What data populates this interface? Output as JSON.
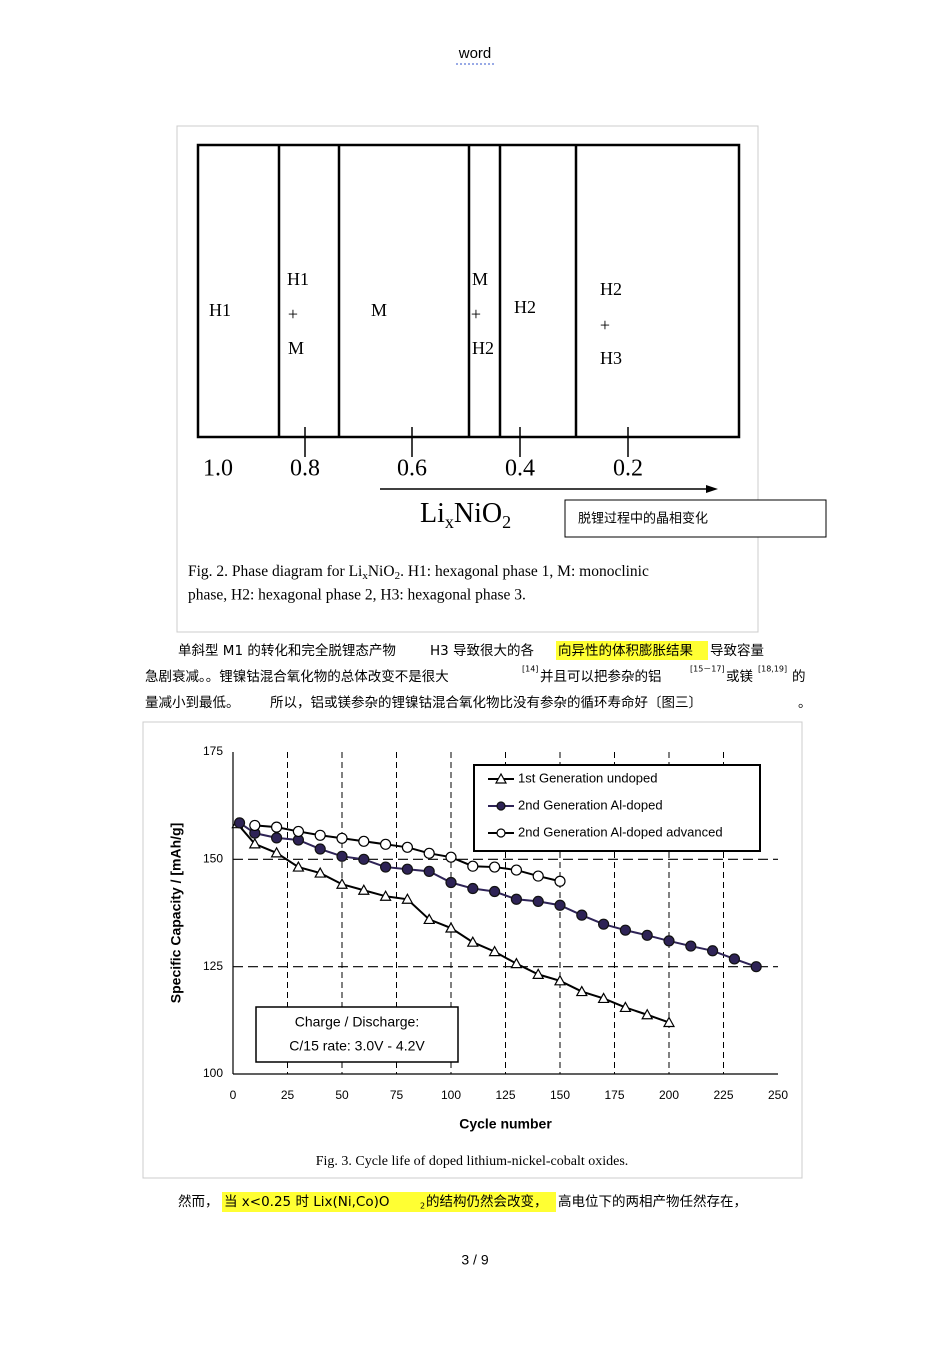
{
  "header": {
    "title": "word"
  },
  "figure_2": {
    "phases": [
      [
        "H1"
      ],
      [
        "H1",
        "+",
        "M"
      ],
      [
        "M"
      ],
      [
        "M",
        "+",
        "H2"
      ],
      [
        "H2"
      ],
      [
        "H2",
        "+",
        "H3"
      ]
    ],
    "ticks": [
      "1.0",
      "0.8",
      "0.6",
      "0.4",
      "0.2"
    ],
    "axis_label": [
      "Li",
      "x",
      "NiO",
      "2"
    ],
    "annotation": "脱锂过程中的晶相变化",
    "caption": [
      [
        "Fig. 2. Phase diagram for Li",
        "x",
        "NiO",
        "2",
        ". H1: hexagonal phase 1, M: monoclinic"
      ],
      [
        "phase, H2: hexagonal phase 2, H3: hexagonal phase 3."
      ]
    ]
  },
  "paragraph_1": [
    [
      "单斜型  M1 的转化和完全脱锂态产物",
      "H3 导致很大的各",
      "向异性的体积膨胀结果",
      "导致容量"
    ],
    [
      "急剧衰减。。锂镍钴混合氧化物的总体改变不是很大",
      "[14]",
      "并且可以把参杂的铝",
      "[15－17]",
      "或镁",
      "[18,19]",
      "的"
    ],
    [
      "量减小到最低。",
      "所以，铝或镁参杂的锂镍钴混合氧化物比没有参杂的循环寿命好〔图三〕",
      "。"
    ]
  ],
  "chart_data": {
    "type": "line",
    "x_label": "Cycle number",
    "y_label": "Specific Capacity / [mAh/g]",
    "xlim": [
      0,
      250
    ],
    "xticks": [
      0,
      25,
      50,
      75,
      100,
      125,
      150,
      175,
      200,
      225,
      250
    ],
    "ylim": [
      100,
      175
    ],
    "yticks": [
      100,
      125,
      150,
      175
    ],
    "grid": true,
    "legend": "upper right",
    "annotation": [
      "Charge / Discharge:",
      "C/15 rate: 3.0V - 4.2V"
    ],
    "series": [
      {
        "name": "1st Generation undoped",
        "color": "#000000",
        "marker": "triangle-open",
        "x": [
          2,
          10,
          20,
          30,
          40,
          50,
          60,
          70,
          80,
          90,
          100,
          110,
          120,
          130,
          140,
          150,
          160,
          170,
          180,
          190,
          200
        ],
        "values": [
          158.3,
          153.6,
          151.5,
          148.2,
          146.8,
          144.2,
          142.8,
          141.4,
          140.7,
          136,
          134,
          130.7,
          128.5,
          125.7,
          123.2,
          121.7,
          119.2,
          117.6,
          115.5,
          113.8,
          112
        ]
      },
      {
        "name": "2nd Generation Al-doped",
        "color": "#2e2356",
        "marker": "circle-filled",
        "x": [
          3,
          10,
          20,
          30,
          40,
          50,
          60,
          70,
          80,
          90,
          100,
          110,
          120,
          130,
          140,
          150,
          160,
          170,
          180,
          190,
          200,
          210,
          220,
          230,
          240
        ],
        "values": [
          158.5,
          156.1,
          155,
          154.5,
          152.4,
          150.7,
          150,
          148.2,
          147.7,
          147.2,
          144.6,
          143.2,
          142.5,
          140.7,
          140.2,
          139.3,
          137,
          134.9,
          133.5,
          132.3,
          131,
          129.8,
          128.7,
          126.8,
          125
        ]
      },
      {
        "name": "2nd Generation Al-doped advanced",
        "color": "#000000",
        "marker": "circle-open",
        "x": [
          10,
          20,
          30,
          40,
          50,
          60,
          70,
          80,
          90,
          100,
          110,
          120,
          130,
          140,
          150
        ],
        "values": [
          157.9,
          157.5,
          156.5,
          155.6,
          154.9,
          154.2,
          153.5,
          152.8,
          151.4,
          150.5,
          148.4,
          148.2,
          147.5,
          146.1,
          144.9
        ]
      }
    ]
  },
  "figure_3_caption": "Fig. 3. Cycle life of doped lithium-nickel-cobalt oxides.",
  "paragraph_2": [
    "然而，",
    "当  x<0.25  时  Lix(Ni,Co)O",
    "2",
    "的结构仍然会改变，",
    "高电位下的两相产物任然存在，"
  ],
  "footer": {
    "page": "3 / 9"
  }
}
